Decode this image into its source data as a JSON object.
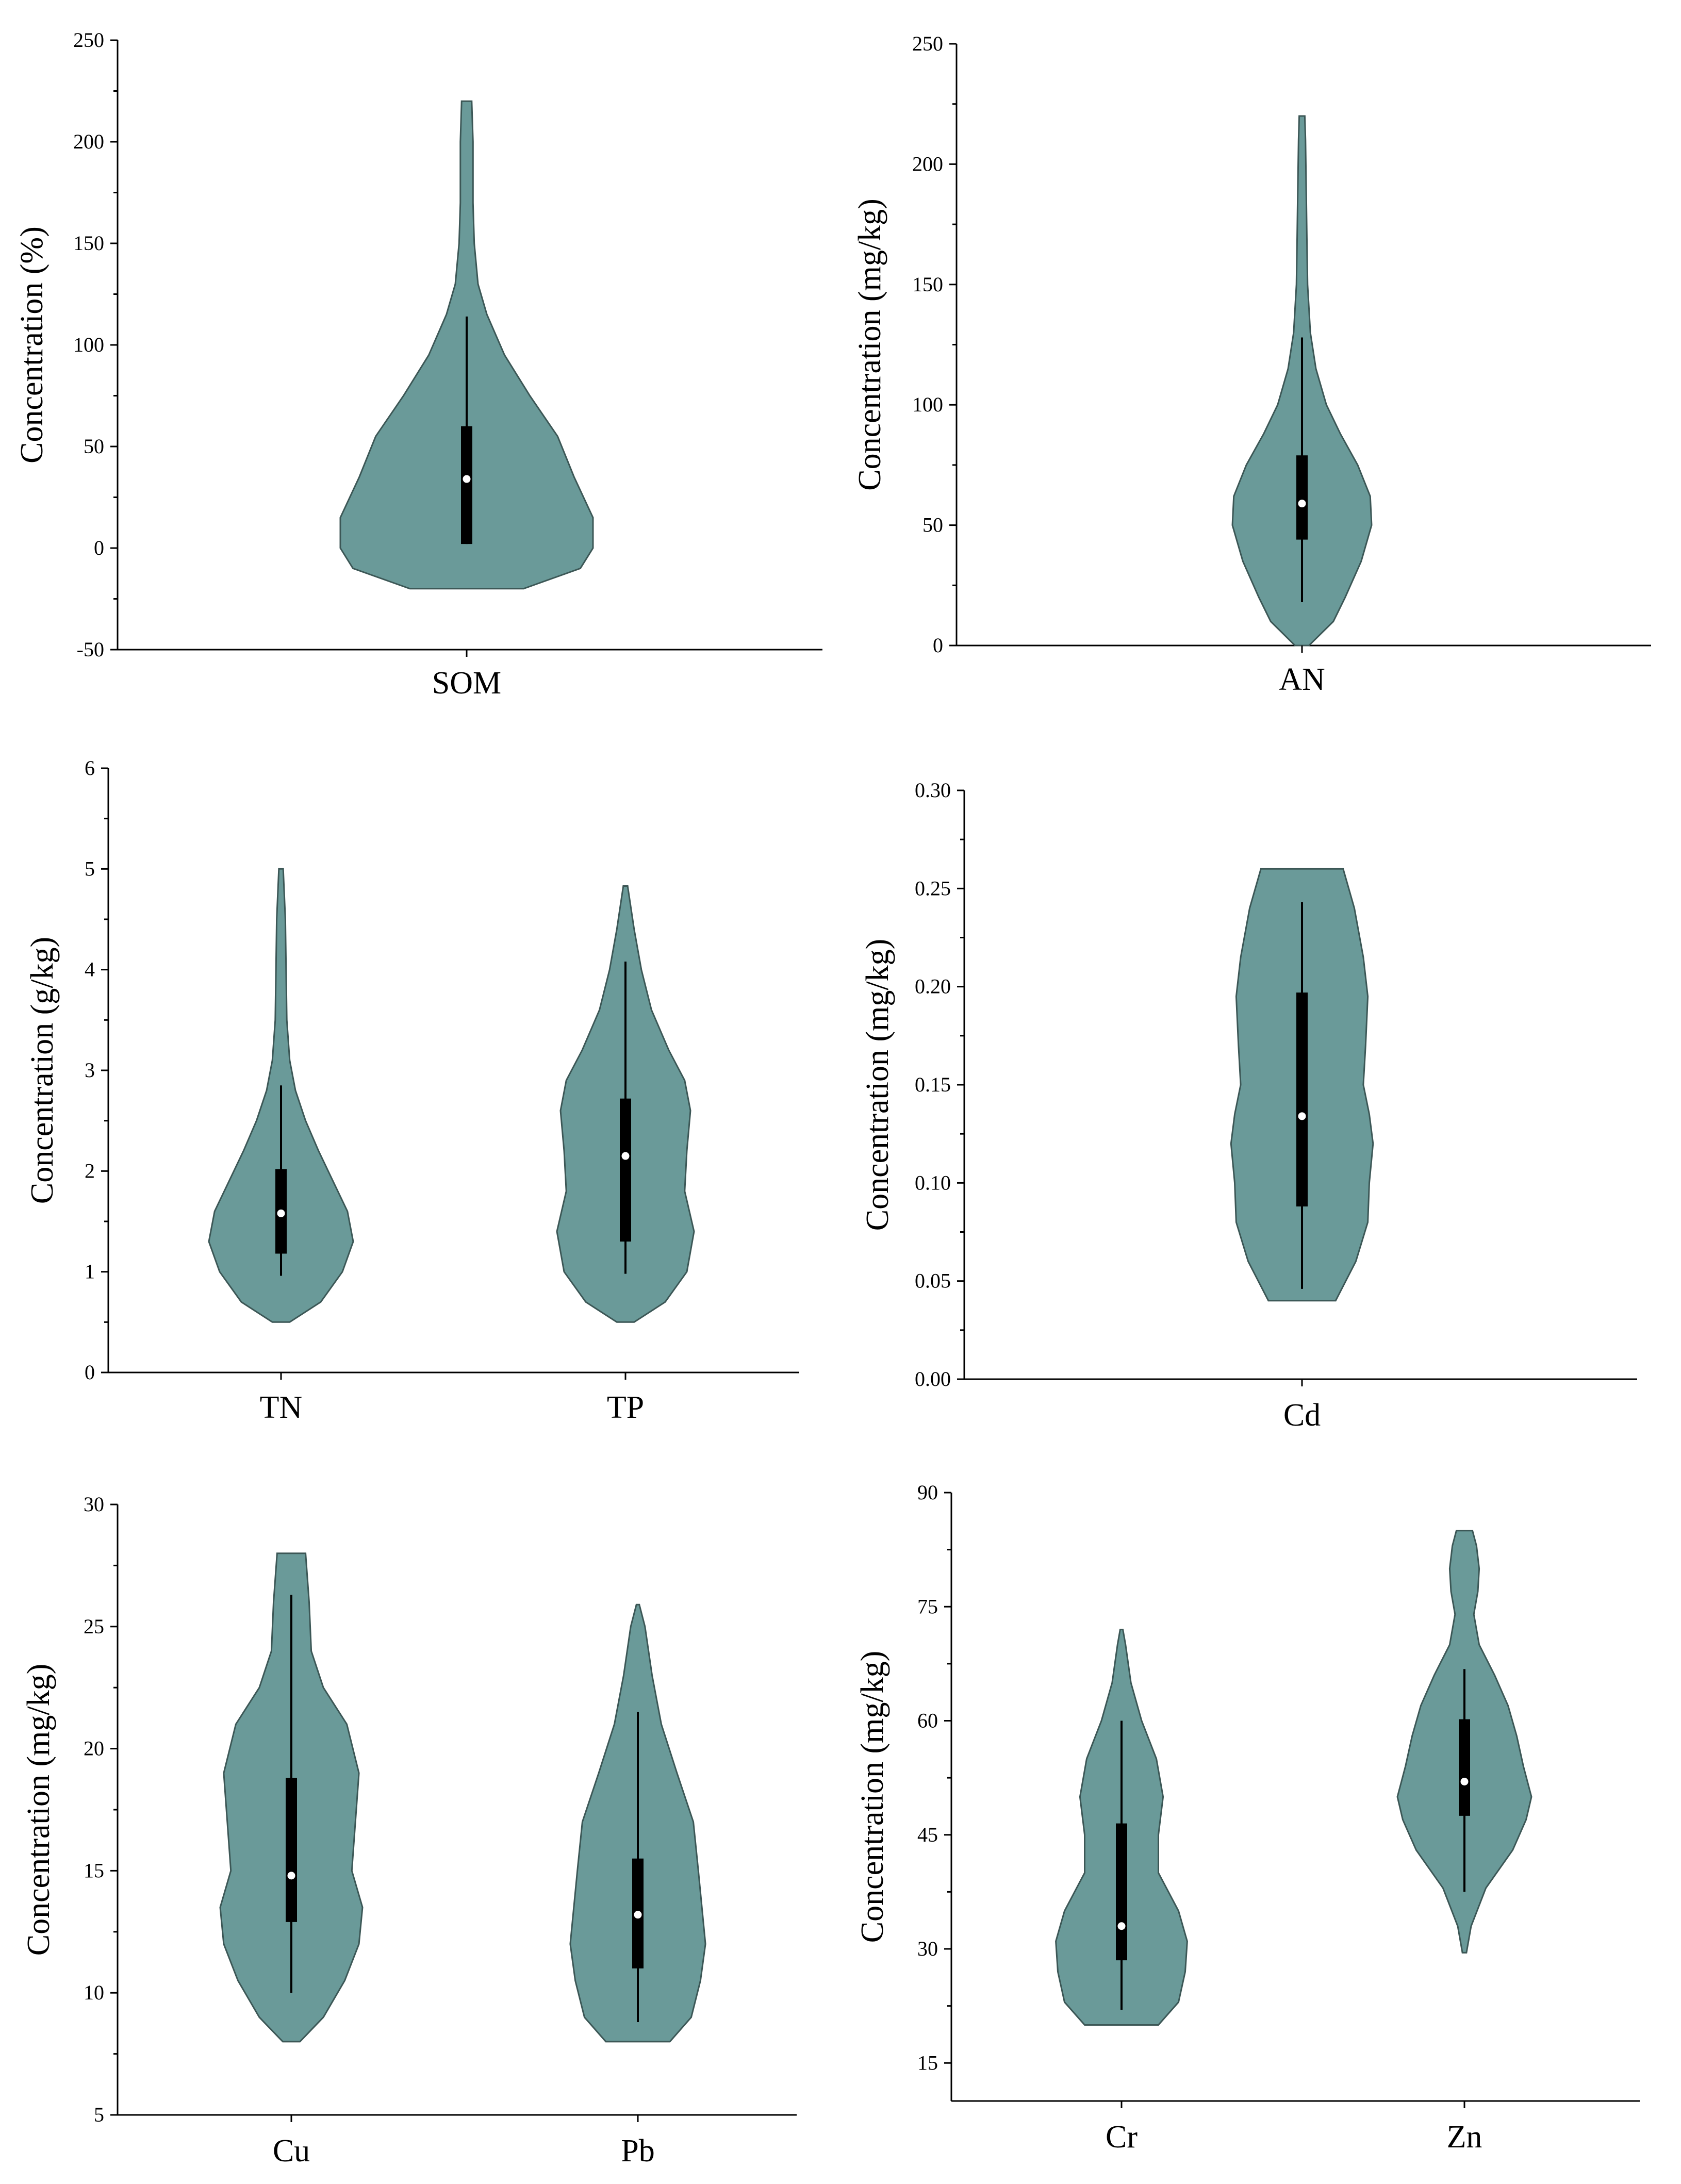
{
  "colors": {
    "violin_fill": "#6a9a99",
    "violin_stroke": "#3c5756",
    "box": "#000000",
    "median": "#ffffff"
  },
  "chart_data": [
    {
      "type": "violin",
      "panel": "top-left",
      "ylabel": "Concentration (%)",
      "ylim": [
        -50,
        250
      ],
      "yticks": [
        -50,
        0,
        50,
        100,
        150,
        200,
        250
      ],
      "ytick_labels": [
        "-50",
        "0",
        "50",
        "100",
        "150",
        "200",
        "250"
      ],
      "categories": [
        "SOM"
      ],
      "series": [
        {
          "name": "SOM",
          "median": 34,
          "q1": 2,
          "q3": 60,
          "whisker_low": 2,
          "whisker_high": 114,
          "density": [
            [
              -20,
              0.45
            ],
            [
              -10,
              0.9
            ],
            [
              0,
              1.0
            ],
            [
              15,
              1.0
            ],
            [
              35,
              0.85
            ],
            [
              55,
              0.72
            ],
            [
              75,
              0.5
            ],
            [
              95,
              0.3
            ],
            [
              115,
              0.16
            ],
            [
              130,
              0.09
            ],
            [
              150,
              0.06
            ],
            [
              170,
              0.05
            ],
            [
              200,
              0.05
            ],
            [
              220,
              0.04
            ]
          ]
        }
      ]
    },
    {
      "type": "violin",
      "panel": "top-right",
      "ylabel": "Concentration (mg/kg)",
      "ylim": [
        0,
        250
      ],
      "yticks": [
        0,
        50,
        100,
        150,
        200,
        250
      ],
      "ytick_labels": [
        "0",
        "50",
        "100",
        "150",
        "200",
        "250"
      ],
      "categories": [
        "AN"
      ],
      "series": [
        {
          "name": "AN",
          "median": 59,
          "q1": 44,
          "q3": 79,
          "whisker_low": 18,
          "whisker_high": 128,
          "density": [
            [
              0,
              0.1
            ],
            [
              10,
              0.45
            ],
            [
              20,
              0.62
            ],
            [
              35,
              0.85
            ],
            [
              50,
              1.0
            ],
            [
              62,
              0.98
            ],
            [
              75,
              0.8
            ],
            [
              88,
              0.55
            ],
            [
              100,
              0.35
            ],
            [
              115,
              0.2
            ],
            [
              130,
              0.12
            ],
            [
              150,
              0.08
            ],
            [
              170,
              0.07
            ],
            [
              190,
              0.06
            ],
            [
              210,
              0.05
            ],
            [
              220,
              0.04
            ]
          ]
        }
      ]
    },
    {
      "type": "violin",
      "panel": "middle-left",
      "ylabel": "Concentration (g/kg)",
      "ylim": [
        0,
        6
      ],
      "yticks": [
        0,
        1,
        2,
        3,
        4,
        5,
        6
      ],
      "ytick_labels": [
        "0",
        "1",
        "2",
        "3",
        "4",
        "5",
        "6"
      ],
      "categories": [
        "TN",
        "TP"
      ],
      "series": [
        {
          "name": "TN",
          "median": 1.58,
          "q1": 1.18,
          "q3": 2.02,
          "whisker_low": 0.96,
          "whisker_high": 2.85,
          "density": [
            [
              0.5,
              0.12
            ],
            [
              0.7,
              0.55
            ],
            [
              1.0,
              0.85
            ],
            [
              1.3,
              1.0
            ],
            [
              1.6,
              0.92
            ],
            [
              1.9,
              0.72
            ],
            [
              2.2,
              0.52
            ],
            [
              2.5,
              0.34
            ],
            [
              2.8,
              0.2
            ],
            [
              3.1,
              0.12
            ],
            [
              3.5,
              0.08
            ],
            [
              4.0,
              0.07
            ],
            [
              4.5,
              0.06
            ],
            [
              5.0,
              0.03
            ]
          ]
        },
        {
          "name": "TP",
          "median": 2.15,
          "q1": 1.3,
          "q3": 2.72,
          "whisker_low": 0.98,
          "whisker_high": 4.08,
          "density": [
            [
              0.5,
              0.12
            ],
            [
              0.7,
              0.55
            ],
            [
              1.0,
              0.85
            ],
            [
              1.4,
              0.95
            ],
            [
              1.8,
              0.82
            ],
            [
              2.2,
              0.85
            ],
            [
              2.6,
              0.9
            ],
            [
              2.9,
              0.82
            ],
            [
              3.2,
              0.6
            ],
            [
              3.6,
              0.36
            ],
            [
              4.0,
              0.22
            ],
            [
              4.4,
              0.12
            ],
            [
              4.83,
              0.03
            ]
          ]
        }
      ]
    },
    {
      "type": "violin",
      "panel": "middle-right",
      "ylabel": "Concentration (mg/kg)",
      "ylim": [
        0.0,
        0.3
      ],
      "yticks": [
        0.0,
        0.05,
        0.1,
        0.15,
        0.2,
        0.25,
        0.3
      ],
      "ytick_labels": [
        "0.00",
        "0.05",
        "0.10",
        "0.15",
        "0.20",
        "0.25",
        "0.30"
      ],
      "categories": [
        "Cd"
      ],
      "series": [
        {
          "name": "Cd",
          "median": 0.134,
          "q1": 0.088,
          "q3": 0.197,
          "whisker_low": 0.046,
          "whisker_high": 0.243,
          "density": [
            [
              0.04,
              0.45
            ],
            [
              0.06,
              0.72
            ],
            [
              0.08,
              0.88
            ],
            [
              0.1,
              0.9
            ],
            [
              0.12,
              0.95
            ],
            [
              0.135,
              0.9
            ],
            [
              0.15,
              0.82
            ],
            [
              0.17,
              0.85
            ],
            [
              0.195,
              0.88
            ],
            [
              0.215,
              0.82
            ],
            [
              0.24,
              0.7
            ],
            [
              0.26,
              0.55
            ]
          ]
        }
      ]
    },
    {
      "type": "violin",
      "panel": "bottom-left",
      "ylabel": "Concentration (mg/kg)",
      "ylim": [
        5,
        30
      ],
      "yticks": [
        5,
        10,
        15,
        20,
        25,
        30
      ],
      "ytick_labels": [
        "5",
        "10",
        "15",
        "20",
        "25",
        "30"
      ],
      "categories": [
        "Cu",
        "Pb"
      ],
      "series": [
        {
          "name": "Cu",
          "median": 14.8,
          "q1": 12.9,
          "q3": 18.8,
          "whisker_low": 10.0,
          "whisker_high": 26.3,
          "density": [
            [
              8,
              0.12
            ],
            [
              9,
              0.45
            ],
            [
              10.5,
              0.75
            ],
            [
              12,
              0.95
            ],
            [
              13.5,
              1.0
            ],
            [
              15,
              0.85
            ],
            [
              17,
              0.9
            ],
            [
              19,
              0.95
            ],
            [
              21,
              0.78
            ],
            [
              22.5,
              0.45
            ],
            [
              24,
              0.28
            ],
            [
              26,
              0.25
            ],
            [
              28,
              0.2
            ]
          ]
        },
        {
          "name": "Pb",
          "median": 13.2,
          "q1": 11.0,
          "q3": 15.5,
          "whisker_low": 8.8,
          "whisker_high": 21.5,
          "density": [
            [
              8,
              0.45
            ],
            [
              9,
              0.75
            ],
            [
              10.5,
              0.88
            ],
            [
              12,
              0.95
            ],
            [
              13.5,
              0.9
            ],
            [
              15,
              0.85
            ],
            [
              17,
              0.78
            ],
            [
              19,
              0.55
            ],
            [
              21,
              0.33
            ],
            [
              23,
              0.2
            ],
            [
              25,
              0.1
            ],
            [
              25.9,
              0.02
            ]
          ]
        }
      ]
    },
    {
      "type": "violin",
      "panel": "bottom-right",
      "ylabel": "Concentration (mg/kg)",
      "ylim": [
        10,
        90
      ],
      "yticks": [
        15,
        30,
        45,
        60,
        75,
        90
      ],
      "ytick_labels": [
        "15",
        "30",
        "45",
        "60",
        "75",
        "90"
      ],
      "categories": [
        "Cr",
        "Zn"
      ],
      "series": [
        {
          "name": "Cr",
          "median": 33,
          "q1": 28.5,
          "q3": 46.5,
          "whisker_low": 22,
          "whisker_high": 60,
          "density": [
            [
              20,
              0.55
            ],
            [
              23,
              0.85
            ],
            [
              27,
              0.95
            ],
            [
              31,
              0.98
            ],
            [
              35,
              0.85
            ],
            [
              40,
              0.55
            ],
            [
              45,
              0.55
            ],
            [
              50,
              0.62
            ],
            [
              55,
              0.52
            ],
            [
              60,
              0.3
            ],
            [
              65,
              0.14
            ],
            [
              70,
              0.06
            ],
            [
              72,
              0.02
            ]
          ]
        },
        {
          "name": "Zn",
          "median": 52,
          "q1": 47.5,
          "q3": 60.2,
          "whisker_low": 37.5,
          "whisker_high": 66.8,
          "density": [
            [
              29.5,
              0.03
            ],
            [
              33,
              0.1
            ],
            [
              38,
              0.32
            ],
            [
              43,
              0.72
            ],
            [
              47,
              0.92
            ],
            [
              50,
              1.0
            ],
            [
              54,
              0.88
            ],
            [
              58,
              0.78
            ],
            [
              62,
              0.65
            ],
            [
              66,
              0.45
            ],
            [
              70,
              0.22
            ],
            [
              74,
              0.14
            ],
            [
              77,
              0.2
            ],
            [
              80,
              0.22
            ],
            [
              83,
              0.18
            ],
            [
              85,
              0.12
            ]
          ]
        }
      ]
    }
  ]
}
